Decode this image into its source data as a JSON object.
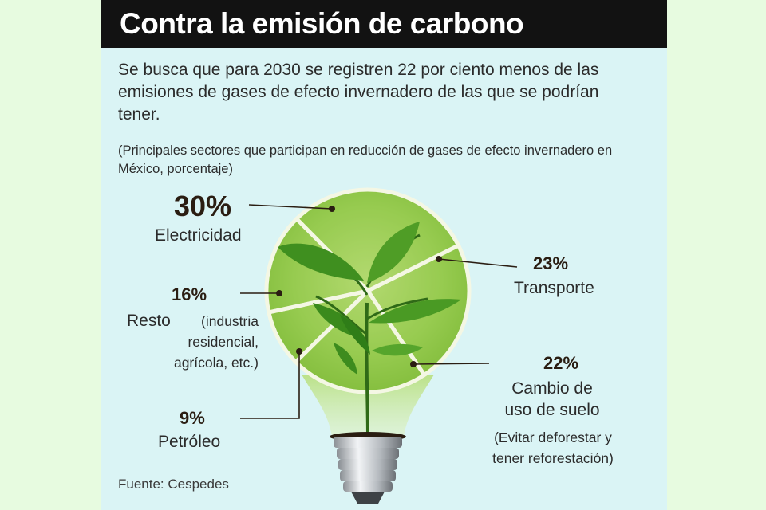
{
  "title": "Contra la emisión de carbono",
  "subtitle": "Se busca que para 2030 se registren 22 por ciento menos de las emisiones de gases de efecto invernadero de las que se podrían tener.",
  "note": "(Principales sectores que participan en reducción de gases de efecto invernadero en México, porcentaje)",
  "source": "Fuente: Cespedes",
  "colors": {
    "bulb_green": "#8ac43f",
    "slice_line": "#f4f7e4",
    "title_bg": "#121212"
  },
  "chart_data": {
    "type": "pie",
    "unit": "%",
    "slices": [
      {
        "label": "Electricidad",
        "value": 30,
        "display": "30%"
      },
      {
        "label": "Transporte",
        "value": 23,
        "display": "23%"
      },
      {
        "label": "Cambio de uso de suelo",
        "value": 22,
        "display": "22%",
        "detail": "(Evitar deforestar y tener reforestación)"
      },
      {
        "label": "Petróleo",
        "value": 9,
        "display": "9%"
      },
      {
        "label": "Resto",
        "value": 16,
        "display": "16%",
        "detail": "(industria residencial, agrícola, etc.)"
      }
    ]
  }
}
